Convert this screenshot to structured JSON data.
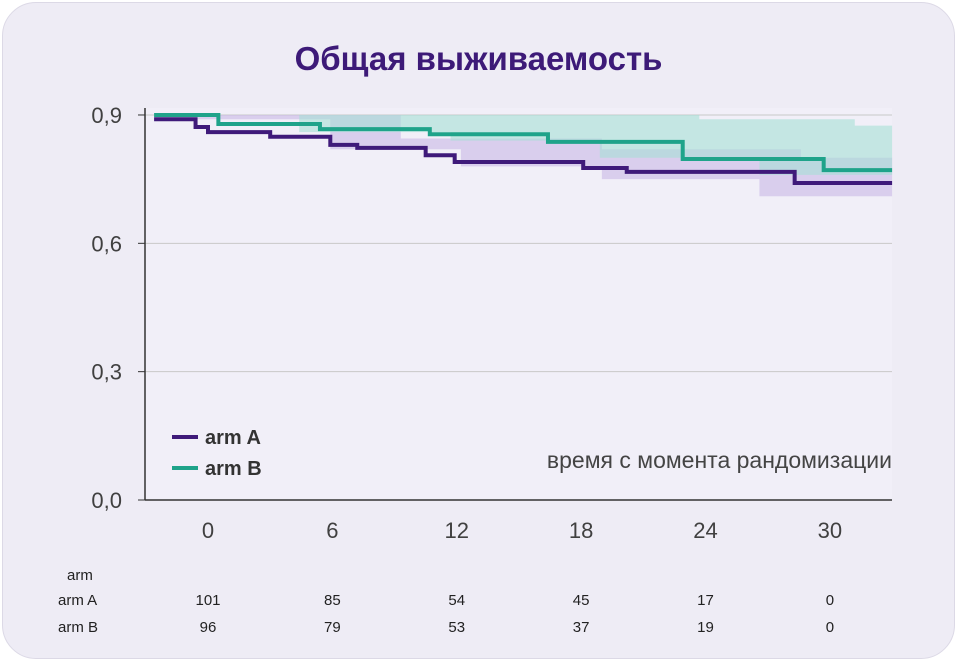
{
  "chart_data": {
    "type": "line",
    "subtype": "kaplan-meier step",
    "title": "Общая выживаемость",
    "xlabel": "время с момента рандомизации",
    "ylabel": "",
    "xlim": [
      -2.6,
      33
    ],
    "ylim": [
      0,
      0.9
    ],
    "x_ticks": [
      0,
      6,
      12,
      18,
      24,
      30
    ],
    "x_tick_labels": [
      "0",
      "6",
      "12",
      "18",
      "24",
      "30"
    ],
    "y_ticks": [
      0,
      0.3,
      0.6,
      0.9
    ],
    "y_tick_labels": [
      "0,0",
      "0,3",
      "0,6",
      "0,9"
    ],
    "grid": "horizontal",
    "legend": "bottom-left",
    "series": [
      {
        "name": "arm A",
        "color": "#3f1a7a",
        "band_color": "#c9b8e6",
        "steps": [
          [
            -2.6,
            0.89
          ],
          [
            -0.6,
            0.872
          ],
          [
            0,
            0.86
          ],
          [
            3,
            0.849
          ],
          [
            5.9,
            0.83
          ],
          [
            7.2,
            0.823
          ],
          [
            10.5,
            0.806
          ],
          [
            11.9,
            0.79
          ],
          [
            18.1,
            0.776
          ],
          [
            20.2,
            0.767
          ],
          [
            28.3,
            0.741
          ],
          [
            33,
            0.741
          ]
        ],
        "band_upper": [
          [
            -2.6,
            0.9
          ],
          [
            9.3,
            0.845
          ],
          [
            19,
            0.82
          ],
          [
            28.6,
            0.8
          ],
          [
            33,
            0.79
          ]
        ],
        "band_lower": [
          [
            -2.6,
            0.89
          ],
          [
            5.9,
            0.82
          ],
          [
            12.2,
            0.78
          ],
          [
            19,
            0.75
          ],
          [
            26.6,
            0.71
          ],
          [
            33,
            0.655
          ]
        ]
      },
      {
        "name": "arm B",
        "color": "#1fa38a",
        "band_color": "#a6e0d6",
        "steps": [
          [
            -2.6,
            0.9
          ],
          [
            0.5,
            0.879
          ],
          [
            5.4,
            0.867
          ],
          [
            10.7,
            0.855
          ],
          [
            16.4,
            0.837
          ],
          [
            22.9,
            0.797
          ],
          [
            29.7,
            0.771
          ],
          [
            33,
            0.771
          ]
        ],
        "band_upper": [
          [
            -2.6,
            0.9
          ],
          [
            15,
            0.9
          ],
          [
            23.7,
            0.89
          ],
          [
            31.2,
            0.875
          ],
          [
            33,
            0.858
          ]
        ],
        "band_lower": [
          [
            -2.6,
            0.9
          ],
          [
            4.4,
            0.86
          ],
          [
            11.7,
            0.84
          ],
          [
            18.9,
            0.8
          ],
          [
            26.6,
            0.76
          ],
          [
            33,
            0.7
          ]
        ]
      }
    ]
  },
  "risk_table": {
    "header": "arm",
    "rows": [
      {
        "label": "arm A",
        "values": [
          "101",
          "85",
          "54",
          "45",
          "17",
          "0"
        ]
      },
      {
        "label": "arm B",
        "values": [
          "96",
          "79",
          "53",
          "37",
          "19",
          "0"
        ]
      }
    ]
  }
}
